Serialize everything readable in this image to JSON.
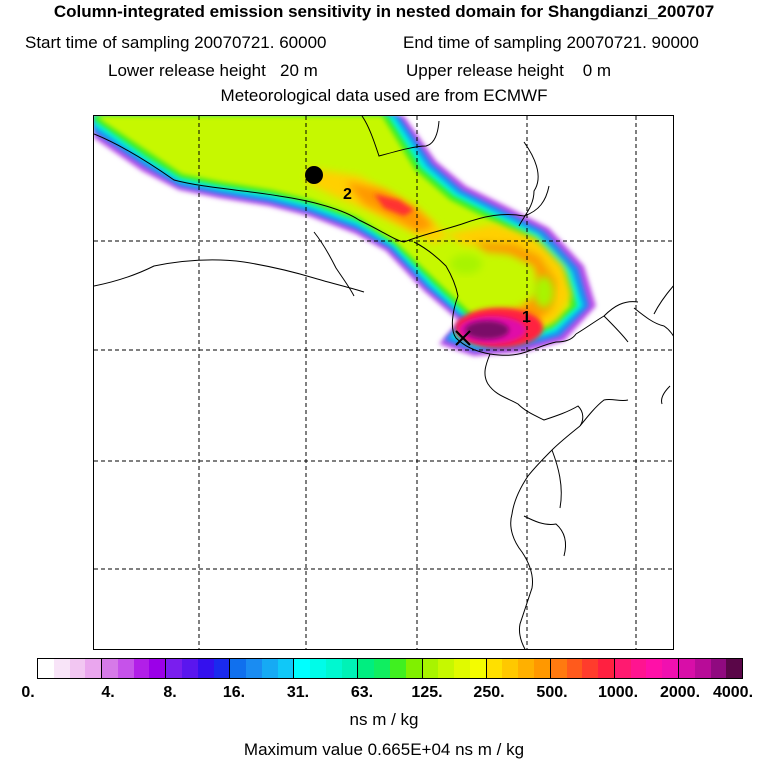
{
  "header": {
    "title": "Column-integrated emission sensitivity in nested domain for Shangdianzi_200707",
    "start_label": "Start time of sampling 20070721. 60000",
    "end_label": "End time of sampling 20070721. 90000",
    "lower_label": "Lower release height   20 m",
    "upper_label": "Upper release height    0 m",
    "met_label": "Meteorological data used are from ECMWF"
  },
  "map": {
    "markers": [
      {
        "label": "1",
        "kind": "release-point"
      },
      {
        "label": "2",
        "kind": "release-point"
      }
    ]
  },
  "legend": {
    "ticks": [
      "0.",
      "4.",
      "8.",
      "16.",
      "31.",
      "63.",
      "125.",
      "250.",
      "500.",
      "1000.",
      "2000.",
      "4000."
    ],
    "unit": "ns m / kg",
    "max_value": "Maximum value  0.665E+04 ns m / kg",
    "colors": [
      [
        "#ffffff",
        "#f8e4f8",
        "#f2c6f2",
        "#eaa6ee"
      ],
      [
        "#d67ae8",
        "#c652ea",
        "#b21fe8",
        "#9b00e8"
      ],
      [
        "#7a1eee",
        "#5a16ee",
        "#3410ee",
        "#1a2aee"
      ],
      [
        "#1070ee",
        "#1a8cf2",
        "#16aaf4",
        "#10c8f8"
      ],
      [
        "#00ffff",
        "#00fce8",
        "#00f8d0",
        "#00f2b6"
      ],
      [
        "#00ee80",
        "#10ee60",
        "#40f020",
        "#80f000"
      ],
      [
        "#a8f400",
        "#c6f800",
        "#e0fa00",
        "#f4fc00"
      ],
      [
        "#ffe000",
        "#ffc800",
        "#ffb000",
        "#ff9800"
      ],
      [
        "#ff7a10",
        "#ff5a1c",
        "#ff3c2c",
        "#ff2040"
      ],
      [
        "#ff1a70",
        "#ff1490",
        "#ff10a8",
        "#f010b0"
      ],
      [
        "#d80ea8",
        "#b80c98",
        "#900a80",
        "#5a0648"
      ]
    ]
  }
}
